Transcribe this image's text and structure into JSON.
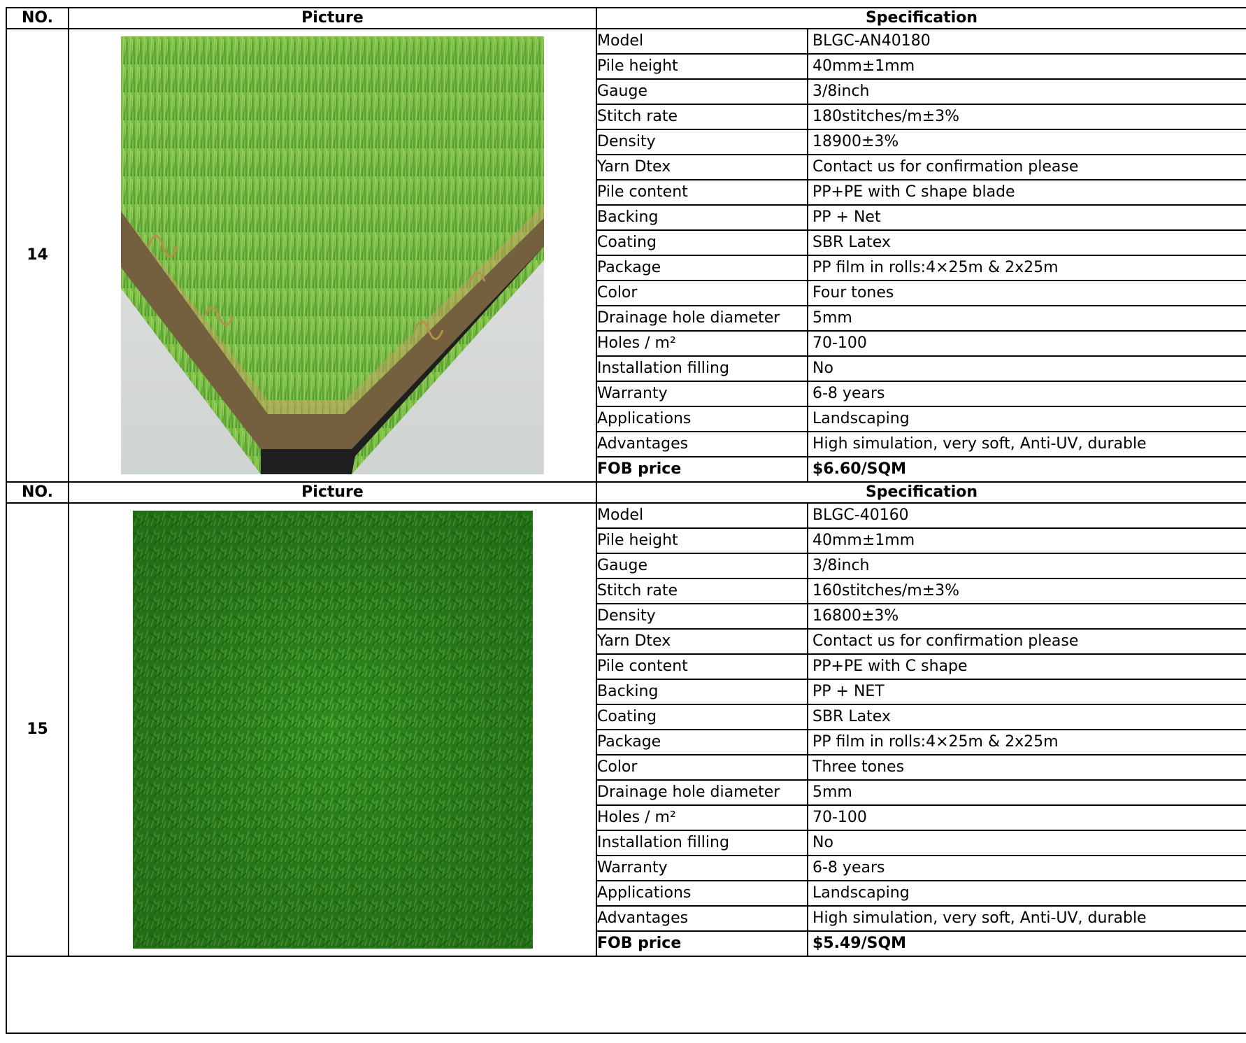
{
  "headers": {
    "no": "NO.",
    "picture": "Picture",
    "specification": "Specification"
  },
  "products": [
    {
      "no": "14",
      "photo_icon": "artificial-grass-corner-sample",
      "specs": [
        {
          "label": "Model",
          "value": "BLGC-AN40180"
        },
        {
          "label": "Pile height",
          "value": "40mm±1mm"
        },
        {
          "label": "Gauge",
          "value": "3/8inch"
        },
        {
          "label": "Stitch rate",
          "value": "180stitches/m±3%"
        },
        {
          "label": "Density",
          "value": "18900±3%"
        },
        {
          "label": "Yarn Dtex",
          "value": "Contact us for confirmation please"
        },
        {
          "label": "Pile content",
          "value": "PP+PE with C shape blade"
        },
        {
          "label": "Backing",
          "value": "PP + Net"
        },
        {
          "label": "Coating",
          "value": "SBR Latex"
        },
        {
          "label": "Package",
          "value": "PP film in rolls:4×25m & 2x25m"
        },
        {
          "label": "Color",
          "value": "Four tones"
        },
        {
          "label": "Drainage hole diameter",
          "value": "5mm"
        },
        {
          "label": "Holes / m²",
          "value": "70-100"
        },
        {
          "label": "Installation filling",
          "value": "No"
        },
        {
          "label": "Warranty",
          "value": "6-8 years"
        },
        {
          "label": "Applications",
          "value": "Landscaping"
        },
        {
          "label": "Advantages",
          "value": "High simulation, very soft, Anti-UV, durable"
        }
      ],
      "price": {
        "label": "FOB price",
        "value": "$6.60/SQM"
      }
    },
    {
      "no": "15",
      "photo_icon": "artificial-grass-top-view-sample",
      "specs": [
        {
          "label": "Model",
          "value": "BLGC-40160"
        },
        {
          "label": "Pile height",
          "value": "40mm±1mm"
        },
        {
          "label": "Gauge",
          "value": "3/8inch"
        },
        {
          "label": "Stitch rate",
          "value": "160stitches/m±3%"
        },
        {
          "label": "Density",
          "value": "16800±3%"
        },
        {
          "label": "Yarn Dtex",
          "value": "Contact us for confirmation please"
        },
        {
          "label": "Pile content",
          "value": "PP+PE  with C shape"
        },
        {
          "label": "Backing",
          "value": "PP + NET"
        },
        {
          "label": "Coating",
          "value": "SBR Latex"
        },
        {
          "label": "Package",
          "value": "PP film in rolls:4×25m & 2x25m"
        },
        {
          "label": "Color",
          "value": "Three tones"
        },
        {
          "label": "Drainage hole diameter",
          "value": "5mm"
        },
        {
          "label": "Holes / m²",
          "value": "70-100"
        },
        {
          "label": "Installation filling",
          "value": "No"
        },
        {
          "label": "Warranty",
          "value": "6-8 years"
        },
        {
          "label": "Applications",
          "value": "Landscaping"
        },
        {
          "label": "Advantages",
          "value": "High simulation, very soft, Anti-UV, durable"
        }
      ],
      "price": {
        "label": "FOB price",
        "value": "$5.49/SQM"
      }
    }
  ],
  "colors": {
    "border": "#000000",
    "grass_light": "#7cc043",
    "grass_dark": "#2f8a1f",
    "backing": "#1e1e1e"
  }
}
